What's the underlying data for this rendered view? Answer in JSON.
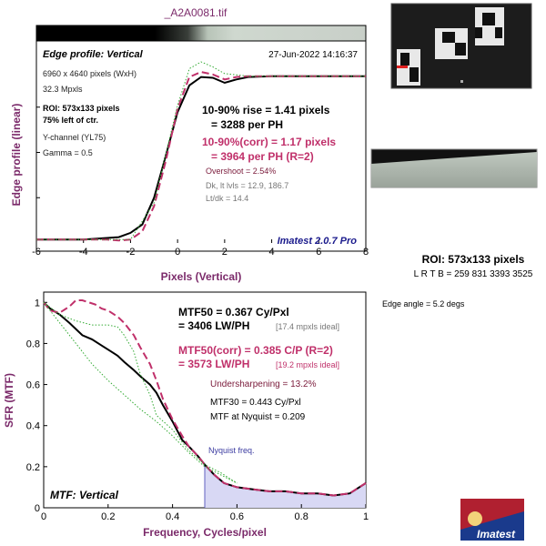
{
  "file_title": "_A2A0081.tif",
  "logo_text": "Imatest",
  "roi": {
    "label": "ROI: 573x133 pixels",
    "coords": "L R T B = 259 831 3393 3525",
    "edge_angle": "Edge angle = 5.2 degs"
  },
  "top_chart": {
    "title": "Edge profile: Vertical",
    "timestamp": "27-Jun-2022 14:16:37",
    "ylabel": "Edge profile (linear)",
    "xlabel": "Pixels (Vertical)",
    "info_left": [
      "6960 x 4640 pixels (WxH)",
      "32.3 Mpxls",
      "ROI: 573x133 pixels",
      "75% left of ctr.",
      "Y-channel  (YL75)",
      "Gamma = 0.5"
    ],
    "rise_lines": [
      "10-90% rise = 1.41 pixels",
      "= 3288 per PH"
    ],
    "corr_lines": [
      "10-90%(corr) = 1.17 pixels",
      "= 3964 per PH  (R=2)"
    ],
    "overshoot": "Overshoot = 2.54%",
    "dk_lt": "Dk, lt lvls = 12.9, 186.7",
    "lt_dk": "Lt/dk = 14.4",
    "version": "Imatest 2.0.7 Pro"
  },
  "bottom_chart": {
    "ylabel": "SFR (MTF)",
    "xlabel": "Frequency, Cycles/pixel",
    "corner_label": "MTF: Vertical",
    "mtf50_lines": [
      "MTF50 = 0.367 Cy/Pxl",
      "= 3406 LW/PH"
    ],
    "mtf50_ideal": "[17.4 mpxls ideal]",
    "mtf50corr_lines": [
      "MTF50(corr) = 0.385 C/P  (R=2)",
      "= 3573 LW/PH"
    ],
    "mtf50corr_ideal": "[19.2 mpxls ideal]",
    "undersharpening": "Undersharpening = 13.2%",
    "mtf30": "MTF30 = 0.443 Cy/Pxl",
    "mtf_nyquist": "MTF at Nyquist = 0.209",
    "nyquist_label": "Nyquist freq."
  },
  "chart_data": [
    {
      "type": "line",
      "title": "Edge profile: Vertical",
      "xlabel": "Pixels (Vertical)",
      "ylabel": "Edge profile (linear)",
      "xlim": [
        -6,
        8
      ],
      "xticks": [
        -6,
        -4,
        -2,
        0,
        2,
        4,
        6,
        8
      ],
      "ylim": [
        0,
        1
      ],
      "series": [
        {
          "color": "#000000",
          "style": "solid",
          "x": [
            -6,
            -5,
            -4,
            -3,
            -2.5,
            -2,
            -1.5,
            -1,
            -0.5,
            0,
            0.5,
            1,
            1.5,
            2,
            2.5,
            3,
            4,
            5,
            6,
            7,
            8
          ],
          "y": [
            0.0,
            0.0,
            0.0,
            0.01,
            0.015,
            0.04,
            0.09,
            0.25,
            0.5,
            0.76,
            0.92,
            0.97,
            0.965,
            0.935,
            0.955,
            0.97,
            0.975,
            0.975,
            0.975,
            0.975,
            0.975
          ]
        },
        {
          "color": "#c0306a",
          "style": "dashed",
          "x": [
            -6,
            -5,
            -4,
            -3,
            -2.5,
            -2,
            -1.5,
            -1,
            -0.5,
            0,
            0.5,
            1,
            1.5,
            2,
            2.5,
            3,
            4,
            5,
            6,
            7,
            8
          ],
          "y": [
            0.0,
            0.0,
            0.0,
            0.0,
            -0.005,
            0.0,
            0.05,
            0.2,
            0.47,
            0.78,
            0.97,
            1.0,
            0.985,
            0.955,
            0.97,
            0.975,
            0.975,
            0.975,
            0.975,
            0.975,
            0.975
          ]
        },
        {
          "color": "#33aa33",
          "style": "dotted",
          "x": [
            -6,
            -4,
            -2,
            -1,
            0,
            0.5,
            1,
            1.5,
            2,
            3,
            4,
            6,
            8
          ],
          "y": [
            0.0,
            0.0,
            0.0,
            0.22,
            0.8,
            1.02,
            1.06,
            1.03,
            0.99,
            0.975,
            0.975,
            0.975,
            0.975
          ]
        }
      ]
    },
    {
      "type": "line",
      "title": "",
      "xlabel": "Frequency, Cycles/pixel",
      "ylabel": "SFR (MTF)",
      "xlim": [
        0,
        1
      ],
      "xticks": [
        0,
        0.2,
        0.4,
        0.6,
        0.8,
        1
      ],
      "ylim": [
        0,
        1.05
      ],
      "yticks": [
        0,
        0.2,
        0.4,
        0.6,
        0.8,
        1
      ],
      "nyquist": 0.5,
      "series": [
        {
          "color": "#000000",
          "style": "solid",
          "x": [
            0,
            0.02,
            0.05,
            0.08,
            0.1,
            0.12,
            0.15,
            0.18,
            0.2,
            0.23,
            0.25,
            0.28,
            0.3,
            0.33,
            0.35,
            0.37,
            0.4,
            0.43,
            0.45,
            0.48,
            0.5,
            0.53,
            0.56,
            0.6,
            0.65,
            0.7,
            0.75,
            0.8,
            0.85,
            0.9,
            0.95,
            1.0
          ],
          "y": [
            1.0,
            0.97,
            0.94,
            0.9,
            0.87,
            0.84,
            0.82,
            0.79,
            0.77,
            0.74,
            0.71,
            0.67,
            0.64,
            0.6,
            0.56,
            0.5,
            0.42,
            0.33,
            0.3,
            0.25,
            0.21,
            0.16,
            0.12,
            0.1,
            0.09,
            0.08,
            0.08,
            0.07,
            0.07,
            0.06,
            0.07,
            0.12
          ]
        },
        {
          "color": "#c0306a",
          "style": "dashed",
          "x": [
            0,
            0.02,
            0.05,
            0.08,
            0.1,
            0.12,
            0.14,
            0.16,
            0.18,
            0.2,
            0.23,
            0.25,
            0.28,
            0.3,
            0.33,
            0.35,
            0.37,
            0.4,
            0.43,
            0.45,
            0.48,
            0.5,
            0.53,
            0.56,
            0.6,
            0.65,
            0.7,
            0.75,
            0.8,
            0.85,
            0.9,
            0.95,
            1.0
          ],
          "y": [
            1.0,
            0.96,
            0.95,
            0.98,
            1.01,
            1.01,
            1.0,
            0.99,
            0.97,
            0.96,
            0.93,
            0.9,
            0.84,
            0.78,
            0.7,
            0.62,
            0.53,
            0.43,
            0.35,
            0.3,
            0.25,
            0.21,
            0.16,
            0.12,
            0.1,
            0.09,
            0.08,
            0.08,
            0.07,
            0.07,
            0.06,
            0.07,
            0.12
          ]
        },
        {
          "color": "#33aa33",
          "style": "dotted",
          "x": [
            0,
            0.05,
            0.1,
            0.15,
            0.2,
            0.23,
            0.25,
            0.28,
            0.3,
            0.33,
            0.35,
            0.4,
            0.45,
            0.5,
            0.55,
            0.6
          ],
          "y": [
            1.0,
            0.94,
            0.91,
            0.89,
            0.89,
            0.88,
            0.84,
            0.76,
            0.65,
            0.55,
            0.45,
            0.38,
            0.28,
            0.21,
            0.17,
            0.12
          ]
        },
        {
          "color": "#33aa33",
          "style": "dotted",
          "x": [
            0,
            0.05,
            0.1,
            0.15,
            0.2,
            0.25,
            0.3,
            0.35,
            0.4,
            0.45,
            0.5,
            0.55,
            0.6
          ],
          "y": [
            1.0,
            0.9,
            0.8,
            0.7,
            0.62,
            0.55,
            0.48,
            0.42,
            0.35,
            0.27,
            0.2,
            0.16,
            0.12
          ]
        }
      ]
    }
  ]
}
